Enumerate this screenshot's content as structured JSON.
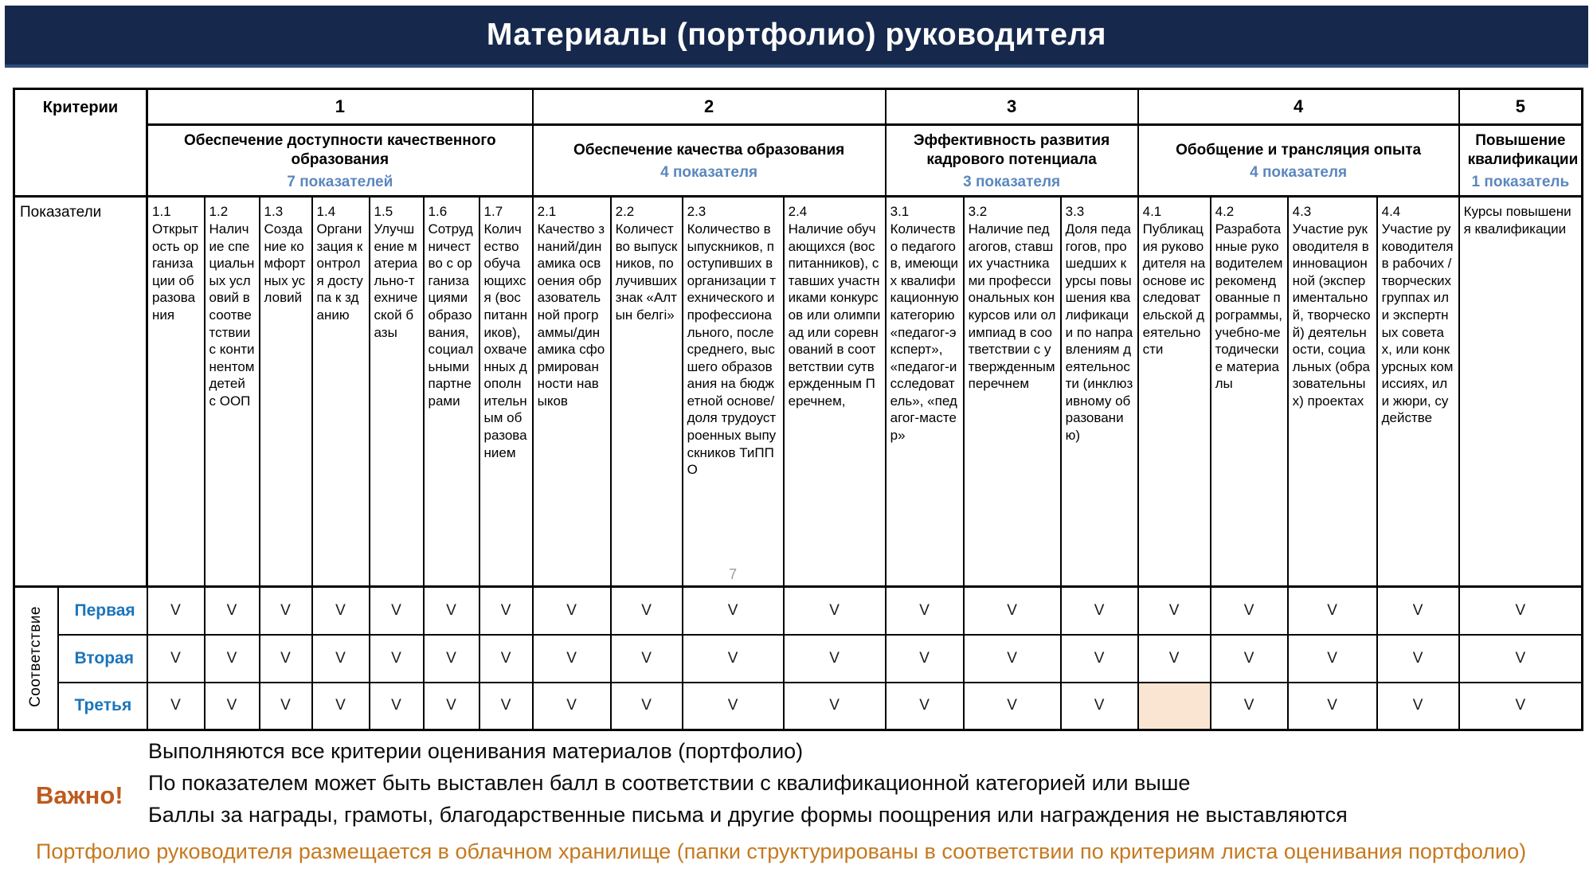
{
  "title": "Материалы (портфолио) руководителя",
  "table": {
    "criteria_label": "Критерии",
    "indicators_label": "Показатели",
    "compliance_label": "Соответствие",
    "check_mark": "V",
    "groups": [
      {
        "number": "1",
        "name": "Обеспечение доступности качественного образования",
        "count": "7 показателей",
        "span": 7
      },
      {
        "number": "2",
        "name": "Обеспечение качества образования",
        "count": "4 показателя",
        "span": 4
      },
      {
        "number": "3",
        "name": "Эффективность развития кадрового потенциала",
        "count": "3 показателя",
        "span": 3
      },
      {
        "number": "4",
        "name": "Обобщение и трансляция опыта",
        "count": "4 показателя",
        "span": 4
      },
      {
        "number": "5",
        "name": "Повышение квалификации",
        "count": "1 показатель",
        "span": 1
      }
    ],
    "indicators": [
      {
        "id": "1.1",
        "text": "Открытость организации образования"
      },
      {
        "id": "1.2",
        "text": "Наличие специальных условий в соответствии с континентом детей с ООП"
      },
      {
        "id": "1.3",
        "text": "Создание комфортных условий"
      },
      {
        "id": "1.4",
        "text": "Организация контроля доступа к зданию"
      },
      {
        "id": "1.5",
        "text": "Улучшение материально-технической базы"
      },
      {
        "id": "1.6",
        "text": "Сотрудничество с организациями образования, социальными партнерами"
      },
      {
        "id": "1.7",
        "text": "Количество обучающихся (воспитанников), охваченных дополнительным образованием"
      },
      {
        "id": "2.1",
        "text": "Качество знаний/динамика освоения образовательной программы/динамика сформированности навыков"
      },
      {
        "id": "2.2",
        "text": "Количество выпускников, получивших знак «Алтын белгі»"
      },
      {
        "id": "2.3",
        "text": "Количество выпускников, поступивших в организации технического и профессионального, послесреднего, высшего образования на бюджетной основе/доля трудоустроенных выпускников ТиППО",
        "corner_note": "7"
      },
      {
        "id": "2.4",
        "text": "Наличие обучающихся (воспитанников), ставших участниками конкурсов или олимпиад или соревнований в соответствии сутвержденным Перечнем,"
      },
      {
        "id": "3.1",
        "text": "Количество педагогов, имеющих квалификационную категорию «педагог-эксперт», «педагог-исследователь», «педагог-мастер»"
      },
      {
        "id": "3.2",
        "text": "Наличие педагогов, ставших участниками профессиональных конкурсов или олимпиад в соответствии с утвержденным перечнем"
      },
      {
        "id": "3.3",
        "text": "Доля педагогов, прошедших курсы повышения квалификации по направлениям деятельности (инклюзивному образованию)"
      },
      {
        "id": "4.1",
        "text": "Публикация руководителя на основе исследовательской деятельности"
      },
      {
        "id": "4.2",
        "text": "Разработанные руководителем рекомендованные программы, учебно-методические материалы"
      },
      {
        "id": "4.3",
        "text": "Участие руководителя в инновационной (экспериментальной, творческой) деятельности, социальных (образовательных) проектах"
      },
      {
        "id": "4.4",
        "text": "Участие руководителя в рабочих / творческих группах или экспертных советах, или конкурсных комиссиях, или жюри, судействе"
      },
      {
        "id": "",
        "text": "Курсы повышения квалификации"
      }
    ],
    "rows": [
      {
        "label": "Первая",
        "checks": [
          "v",
          "v",
          "v",
          "v",
          "v",
          "v",
          "v",
          "v",
          "v",
          "v",
          "v",
          "v",
          "v",
          "v",
          "v",
          "v",
          "v",
          "v",
          "v"
        ]
      },
      {
        "label": "Вторая",
        "checks": [
          "v",
          "v",
          "v",
          "v",
          "v",
          "v",
          "v",
          "v",
          "v",
          "v",
          "v",
          "v",
          "v",
          "v",
          "v",
          "v",
          "v",
          "v",
          "v"
        ]
      },
      {
        "label": "Третья",
        "checks": [
          "v",
          "v",
          "v",
          "v",
          "v",
          "v",
          "v",
          "v",
          "v",
          "v",
          "v",
          "v",
          "v",
          "v",
          "",
          "v",
          "v",
          "v",
          "v"
        ],
        "highlight_cols": [
          14
        ]
      }
    ]
  },
  "notes": {
    "important_label": "Важно!",
    "lines": [
      "Выполняются все критерии оценивания материалов (портфолио)",
      "По показателем может быть выставлен балл в соответствии с квалификационной категорией или выше",
      "Баллы за награды, грамоты, благодарственные письма и другие формы поощрения или награждения не выставляются"
    ],
    "footer": "Портфолио руководителя размещается в облачном хранилище (папки структурированы в соответствии по критериям листа оценивания портфолио)"
  },
  "colors": {
    "navy": "#16294C",
    "navy_edge": "#2E4A78",
    "count_blue": "#5B87BE",
    "label_blue": "#1B75BB",
    "orange_strong": "#BE5A1D",
    "orange_light": "#C5791F",
    "highlight": "#FAE5D3",
    "border": "#000000",
    "page_grey": "#9A9A9A",
    "text": "#000000"
  }
}
